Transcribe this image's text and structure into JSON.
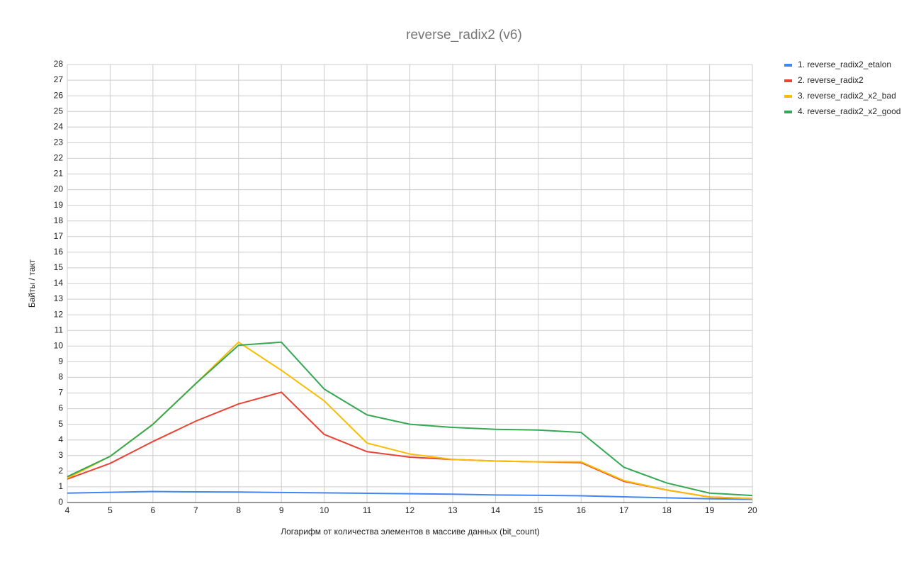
{
  "chart_data": {
    "type": "line",
    "title": "reverse_radix2 (v6)",
    "x_label": "Логарифм от количества элементов в массиве данных (bit_count)",
    "y_label": "Байты / такт",
    "x": [
      4,
      5,
      6,
      7,
      8,
      9,
      10,
      11,
      12,
      13,
      14,
      15,
      16,
      17,
      18,
      19,
      20
    ],
    "series": [
      {
        "name": "1. reverse_radix2_etalon",
        "color": "#4285f4",
        "values": [
          0.6,
          0.65,
          0.7,
          0.68,
          0.67,
          0.64,
          0.62,
          0.59,
          0.56,
          0.53,
          0.48,
          0.46,
          0.43,
          0.36,
          0.3,
          0.24,
          0.2
        ]
      },
      {
        "name": "2. reverse_radix2",
        "color": "#ea4335",
        "values": [
          1.5,
          2.5,
          3.9,
          5.2,
          6.3,
          7.05,
          4.35,
          3.25,
          2.9,
          2.75,
          2.65,
          2.6,
          2.55,
          1.35,
          0.8,
          0.35,
          0.25
        ]
      },
      {
        "name": "3. reverse_radix2_x2_bad",
        "color": "#fbbc04",
        "values": [
          1.55,
          2.95,
          5.0,
          7.6,
          10.25,
          8.45,
          6.5,
          3.8,
          3.1,
          2.75,
          2.65,
          2.6,
          2.6,
          1.4,
          0.8,
          0.35,
          0.25
        ]
      },
      {
        "name": "4. reverse_radix2_x2_good",
        "color": "#34a853",
        "values": [
          1.65,
          2.95,
          5.0,
          7.6,
          10.05,
          10.25,
          7.25,
          5.6,
          5.0,
          4.8,
          4.68,
          4.63,
          4.48,
          2.25,
          1.25,
          0.6,
          0.45
        ]
      }
    ],
    "xlim": [
      4,
      20
    ],
    "xticks": [
      4,
      5,
      6,
      7,
      8,
      9,
      10,
      11,
      12,
      13,
      14,
      15,
      16,
      17,
      18,
      19,
      20
    ],
    "ylim": [
      0,
      28
    ],
    "yticks": [
      0,
      1,
      2,
      3,
      4,
      5,
      6,
      7,
      8,
      9,
      10,
      11,
      12,
      13,
      14,
      15,
      16,
      17,
      18,
      19,
      20,
      21,
      22,
      23,
      24,
      25,
      26,
      27,
      28
    ],
    "grid": true,
    "legend": "right"
  }
}
